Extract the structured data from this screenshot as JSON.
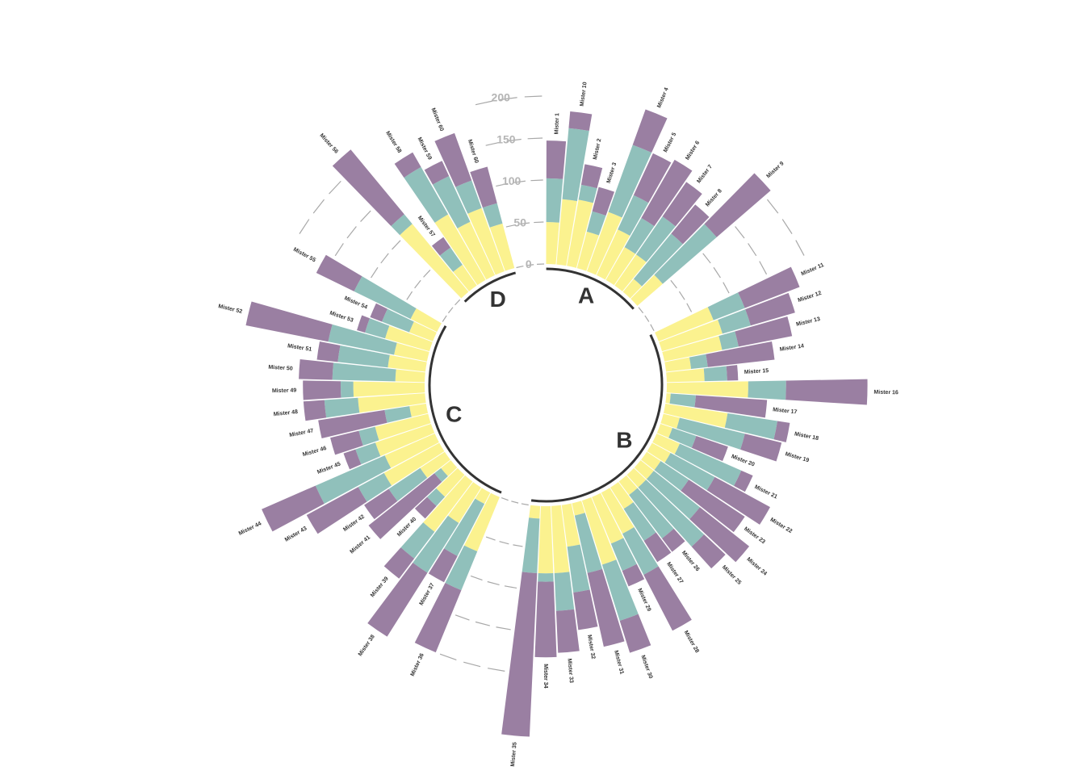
{
  "colors": {
    "observation_1": "#fbf28f",
    "observation_2": "#90c0bb",
    "observation_3": "#9a7fa2",
    "grid": "#a8a8a8",
    "group_arc": "#333333",
    "tick_text": "#b5b5b5"
  },
  "chart_data": {
    "type": "bar",
    "layout": "circular-stacked",
    "ylim": [
      0,
      200
    ],
    "y_ticks": [
      "0",
      "50",
      "100",
      "150",
      "200"
    ],
    "y_tick_values": [
      0,
      50,
      100,
      150,
      200
    ],
    "series_order": [
      "observation_1",
      "observation_2",
      "observation_3"
    ],
    "groups": [
      {
        "name": "A",
        "bars": [
          {
            "label": "Mister 1",
            "values": [
              50,
              52,
              45
            ]
          },
          {
            "label": "Mister 10",
            "values": [
              78,
              85,
              20
            ]
          },
          {
            "label": "Mister 2",
            "values": [
              80,
              18,
              25
            ]
          },
          {
            "label": "Mister 3",
            "values": [
              45,
              25,
              30
            ]
          },
          {
            "label": "Mister 4",
            "values": [
              75,
              85,
              45
            ]
          },
          {
            "label": "Mister 5",
            "values": [
              60,
              45,
              55
            ]
          },
          {
            "label": "Mister 6",
            "values": [
              45,
              40,
              80
            ]
          },
          {
            "label": "Mister 7",
            "values": [
              45,
              55,
              50
            ]
          },
          {
            "label": "Mister 8",
            "values": [
              20,
              70,
              45
            ]
          },
          {
            "label": "Mister 9",
            "values": [
              40,
              85,
              85
            ]
          }
        ]
      },
      {
        "name": "B",
        "bars": [
          {
            "label": "Mister 11",
            "values": [
              70,
              40,
              70
            ]
          },
          {
            "label": "Mister 12",
            "values": [
              75,
              35,
              55
            ]
          },
          {
            "label": "Mister 13",
            "values": [
              70,
              20,
              65
            ]
          },
          {
            "label": "Mister 14",
            "values": [
              30,
              20,
              80
            ]
          },
          {
            "label": "Mister 15",
            "values": [
              45,
              27,
              13
            ]
          },
          {
            "label": "Mister 16",
            "values": [
              97,
              45,
              97
            ]
          },
          {
            "label": "Mister 17",
            "values": [
              5,
              30,
              85
            ]
          },
          {
            "label": "Mister 18",
            "values": [
              75,
              60,
              15
            ]
          },
          {
            "label": "Mister 19",
            "values": [
              20,
              80,
              45
            ]
          },
          {
            "label": "Mister 20",
            "values": [
              15,
              30,
              40
            ]
          },
          {
            "label": "Mister 21",
            "values": [
              30,
              80,
              15
            ]
          },
          {
            "label": "Mister 22",
            "values": [
              25,
              60,
              75
            ]
          },
          {
            "label": "Mister 23",
            "values": [
              20,
              40,
              80
            ]
          },
          {
            "label": "Mister 24",
            "values": [
              20,
              70,
              75
            ]
          },
          {
            "label": "Mister 25",
            "values": [
              20,
              95,
              35
            ]
          },
          {
            "label": "Mister 26",
            "values": [
              20,
              65,
              20
            ]
          },
          {
            "label": "Mister 27",
            "values": [
              30,
              45,
              30
            ]
          },
          {
            "label": "Mister 28",
            "values": [
              55,
              55,
              75
            ]
          },
          {
            "label": "Mister 29",
            "values": [
              60,
              35,
              20
            ]
          },
          {
            "label": "Mister 30",
            "values": [
              80,
              70,
              40
            ]
          },
          {
            "label": "Mister 31",
            "values": [
              15,
              70,
              90
            ]
          },
          {
            "label": "Mister 32",
            "values": [
              50,
              55,
              45
            ]
          },
          {
            "label": "Mister 33",
            "values": [
              80,
              45,
              50
            ]
          },
          {
            "label": "Mister 34",
            "values": [
              80,
              10,
              90
            ]
          },
          {
            "label": "Mister 35",
            "values": [
              15,
              65,
              195
            ]
          }
        ]
      },
      {
        "name": "C",
        "bars": [
          {
            "label": "Mister 36",
            "values": [
              70,
              50,
              80
            ]
          },
          {
            "label": "Mister 37",
            "values": [
              15,
              70,
              35
            ]
          },
          {
            "label": "Mister 38",
            "values": [
              50,
              70,
              90
            ]
          },
          {
            "label": "Mister 39",
            "values": [
              75,
              40,
              30
            ]
          },
          {
            "label": "Mister 40",
            "values": [
              35,
              15,
              20
            ]
          },
          {
            "label": "Mister 41",
            "values": [
              15,
              10,
              100
            ]
          },
          {
            "label": "Mister 42",
            "values": [
              35,
              45,
              35
            ]
          },
          {
            "label": "Mister 43",
            "values": [
              75,
              35,
              70
            ]
          },
          {
            "label": "Mister 44",
            "values": [
              65,
              90,
              70
            ]
          },
          {
            "label": "Mister 45",
            "values": [
              70,
              25,
              15
            ]
          },
          {
            "label": "Mister 46",
            "values": [
              65,
              20,
              35
            ]
          },
          {
            "label": "Mister 47",
            "values": [
              20,
              30,
              80
            ]
          },
          {
            "label": "Mister 48",
            "values": [
              80,
              40,
              25
            ]
          },
          {
            "label": "Mister 49",
            "values": [
              85,
              15,
              45
            ]
          },
          {
            "label": "Mister 50",
            "values": [
              35,
              75,
              40
            ]
          },
          {
            "label": "Mister 51",
            "values": [
              45,
              60,
              25
            ]
          },
          {
            "label": "Mister 52",
            "values": [
              40,
              80,
              100
            ]
          },
          {
            "label": "Mister 53",
            "values": [
              55,
              25,
              10
            ]
          },
          {
            "label": "Mister 54",
            "values": [
              30,
              35,
              15
            ]
          },
          {
            "label": "Mister 55",
            "values": [
              35,
              75,
              50
            ]
          }
        ]
      },
      {
        "name": "D",
        "bars": [
          {
            "label": "Mister 56",
            "values": [
              105,
              15,
              100
            ]
          },
          {
            "label": "Mister 57",
            "values": [
              30,
              25,
              15
            ]
          },
          {
            "label": "Mister 58",
            "values": [
              90,
              65,
              20
            ]
          },
          {
            "label": "Mister 59",
            "values": [
              70,
              60,
              20
            ]
          },
          {
            "label": "Mister 60",
            "values": [
              80,
              35,
              60
            ]
          },
          {
            "label": "Mister 60",
            "values": [
              55,
              25,
              45
            ]
          }
        ]
      }
    ]
  }
}
